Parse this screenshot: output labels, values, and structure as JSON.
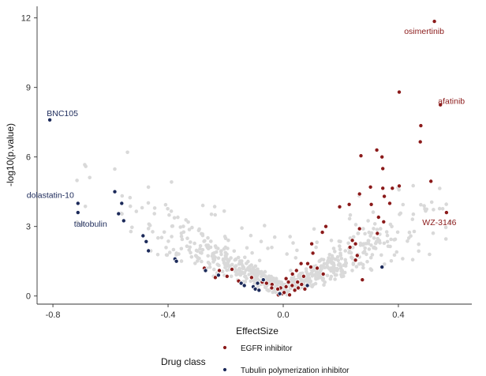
{
  "chart_data": {
    "type": "scatter",
    "xlabel": "EffectSize",
    "ylabel": "-log10(p.value)",
    "xlim": [
      -0.855,
      0.655
    ],
    "ylim": [
      -0.35,
      12.5
    ],
    "x_ticks": [
      -0.8,
      -0.4,
      0.0,
      0.4
    ],
    "y_ticks": [
      0,
      3,
      6,
      9,
      12
    ],
    "grid": false,
    "legend_position": "bottom",
    "legend_title": "Drug class",
    "colors": {
      "background": "#d9d9d9",
      "egfr": "#8b1a1a",
      "tubulin": "#1c2a5a"
    },
    "series": [
      {
        "name": "EGFR inhibitor",
        "color": "#8b1a1a",
        "points": [
          [
            0.525,
            11.85
          ],
          [
            0.403,
            8.8
          ],
          [
            0.546,
            8.25
          ],
          [
            0.478,
            7.35
          ],
          [
            0.476,
            6.65
          ],
          [
            0.325,
            6.3
          ],
          [
            0.27,
            6.05
          ],
          [
            0.343,
            6.0
          ],
          [
            0.346,
            5.5
          ],
          [
            0.513,
            4.95
          ],
          [
            0.303,
            4.7
          ],
          [
            0.403,
            4.75
          ],
          [
            0.346,
            4.65
          ],
          [
            0.379,
            4.65
          ],
          [
            0.265,
            4.4
          ],
          [
            0.351,
            4.3
          ],
          [
            0.229,
            3.95
          ],
          [
            0.196,
            3.85
          ],
          [
            0.37,
            4.0
          ],
          [
            0.306,
            3.95
          ],
          [
            0.567,
            3.6
          ],
          [
            0.331,
            3.4
          ],
          [
            0.349,
            3.2
          ],
          [
            0.148,
            3.0
          ],
          [
            0.136,
            2.75
          ],
          [
            0.265,
            2.9
          ],
          [
            0.327,
            2.7
          ],
          [
            0.099,
            2.25
          ],
          [
            0.24,
            2.4
          ],
          [
            0.251,
            2.25
          ],
          [
            0.103,
            1.85
          ],
          [
            0.232,
            2.1
          ],
          [
            0.257,
            1.75
          ],
          [
            0.085,
            1.4
          ],
          [
            0.062,
            1.4
          ],
          [
            0.251,
            1.55
          ],
          [
            0.118,
            1.2
          ],
          [
            0.096,
            1.25
          ],
          [
            0.046,
            1.1
          ],
          [
            0.032,
            0.95
          ],
          [
            0.071,
            0.85
          ],
          [
            0.139,
            0.95
          ],
          [
            0.01,
            0.75
          ],
          [
            0.018,
            0.6
          ],
          [
            0.05,
            0.6
          ],
          [
            0.064,
            0.5
          ],
          [
            0.031,
            0.45
          ],
          [
            0.01,
            0.4
          ],
          [
            -0.009,
            0.35
          ],
          [
            -0.004,
            0.1
          ],
          [
            0.022,
            0.05
          ],
          [
            0.003,
            0.15
          ],
          [
            -0.017,
            0.05
          ],
          [
            0.275,
            0.7
          ],
          [
            -0.019,
            0.3
          ],
          [
            -0.039,
            0.5
          ],
          [
            -0.073,
            0.6
          ],
          [
            -0.11,
            0.8
          ],
          [
            -0.155,
            0.65
          ],
          [
            -0.178,
            1.15
          ],
          [
            -0.222,
            1.1
          ],
          [
            -0.274,
            1.2
          ],
          [
            -0.195,
            0.85
          ],
          [
            -0.236,
            0.8
          ],
          [
            -0.058,
            0.55
          ],
          [
            -0.04,
            0.35
          ],
          [
            0.052,
            0.35
          ],
          [
            0.04,
            0.25
          ],
          [
            0.075,
            0.3
          ]
        ]
      },
      {
        "name": "Tubulin polymerization inhibitor",
        "color": "#1c2a5a",
        "points": [
          [
            -0.811,
            7.6
          ],
          [
            -0.585,
            4.5
          ],
          [
            -0.713,
            4.0
          ],
          [
            -0.561,
            4.0
          ],
          [
            -0.713,
            3.6
          ],
          [
            -0.572,
            3.55
          ],
          [
            -0.554,
            3.25
          ],
          [
            -0.487,
            2.6
          ],
          [
            -0.476,
            2.35
          ],
          [
            -0.468,
            1.95
          ],
          [
            -0.376,
            1.6
          ],
          [
            -0.371,
            1.5
          ],
          [
            -0.27,
            1.1
          ],
          [
            -0.225,
            0.9
          ],
          [
            -0.146,
            0.55
          ],
          [
            -0.089,
            0.55
          ],
          [
            -0.135,
            0.45
          ],
          [
            -0.104,
            0.4
          ],
          [
            -0.097,
            0.3
          ],
          [
            -0.084,
            0.25
          ],
          [
            0.343,
            1.25
          ],
          [
            -0.069,
            0.7
          ],
          [
            0.084,
            0.45
          ],
          [
            -0.012,
            0.1
          ]
        ]
      }
    ],
    "annotations": [
      {
        "text": "osimertinib",
        "x": 0.525,
        "y": 11.85,
        "series": "EGFR inhibitor"
      },
      {
        "text": "afatinib",
        "x": 0.546,
        "y": 8.25,
        "series": "EGFR inhibitor"
      },
      {
        "text": "WZ-3146",
        "x": 0.567,
        "y": 3.6,
        "series": "EGFR inhibitor"
      },
      {
        "text": "BNC105",
        "x": -0.811,
        "y": 7.6,
        "series": "Tubulin polymerization inhibitor"
      },
      {
        "text": "dolastatin-10",
        "x": -0.713,
        "y": 4.0,
        "series": "Tubulin polymerization inhibitor"
      },
      {
        "text": "taltobulin",
        "x": -0.713,
        "y": 3.6,
        "series": "Tubulin polymerization inhibitor"
      }
    ]
  },
  "legend": {
    "title": "Drug class",
    "items": [
      {
        "label": "EGFR inhibitor",
        "color": "#8b1a1a"
      },
      {
        "label": "Tubulin polymerization inhibitor",
        "color": "#1c2a5a"
      }
    ]
  }
}
